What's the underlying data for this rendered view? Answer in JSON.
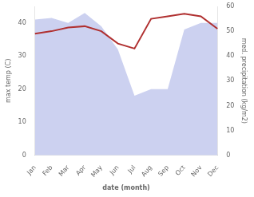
{
  "chart_data": {
    "type": "line",
    "xlabel": "date (month)",
    "ylabel": "max temp (C)",
    "y2label": "med. precipitation (kg/m2)",
    "categories": [
      "Jan",
      "Feb",
      "Mar",
      "Apr",
      "May",
      "Jun",
      "Jul",
      "Aug",
      "Sep",
      "Oct",
      "Nov",
      "Dec"
    ],
    "series": [
      {
        "type": "area",
        "color": "#b0b8e8",
        "values": [
          41,
          41.5,
          40,
          43,
          39,
          32,
          18,
          20,
          20,
          38,
          40,
          40
        ]
      },
      {
        "type": "line",
        "color": "#b03030",
        "axis": "y2",
        "values": [
          49,
          50,
          51.5,
          52,
          50,
          45,
          43,
          55,
          56,
          57,
          56,
          51
        ]
      }
    ],
    "ylim": [
      0,
      45
    ],
    "yticks": [
      0,
      10,
      20,
      30,
      40
    ],
    "y2lim": [
      0,
      60
    ],
    "y2ticks": [
      0,
      10,
      20,
      30,
      40,
      50,
      60
    ],
    "grid": false
  }
}
